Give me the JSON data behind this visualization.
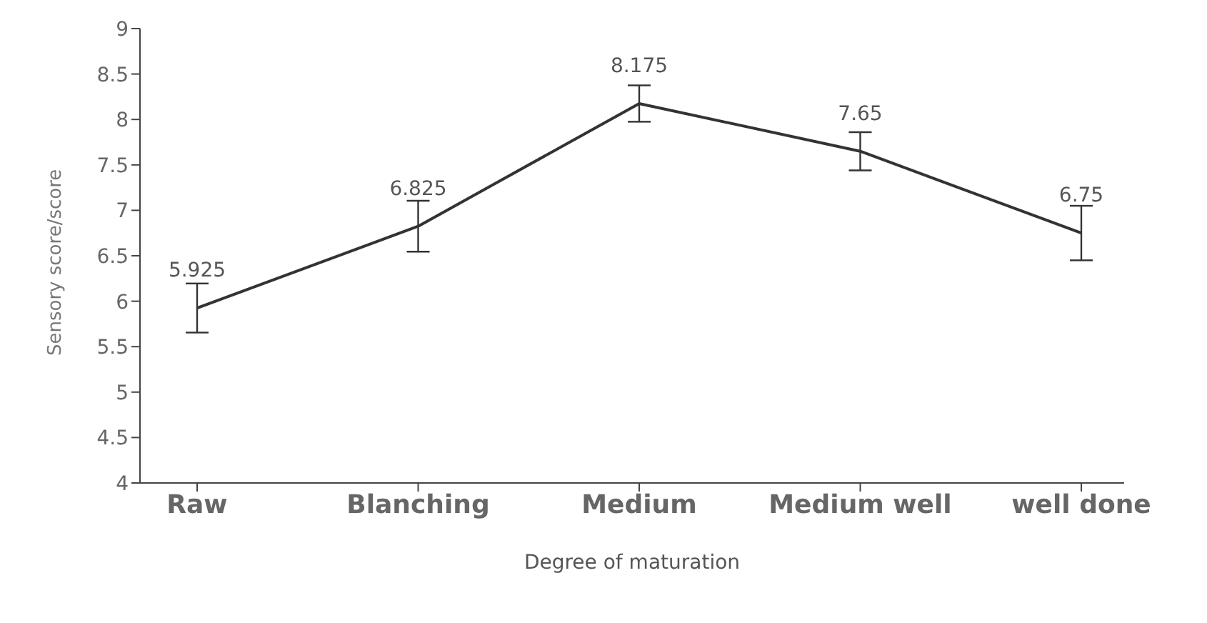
{
  "chart_data": {
    "type": "line",
    "xlabel": "Degree of maturation",
    "ylabel": "Sensory score/score",
    "categories": [
      "Raw",
      "Blanching",
      "Medium",
      "Medium well",
      "well done"
    ],
    "values": [
      5.925,
      6.825,
      8.175,
      7.65,
      6.75
    ],
    "errors": [
      0.27,
      0.28,
      0.2,
      0.21,
      0.3
    ],
    "color": "#333333",
    "ylim": [
      4,
      9
    ],
    "yticks": [
      4,
      4.5,
      5,
      5.5,
      6,
      6.5,
      7,
      7.5,
      8,
      8.5,
      9
    ],
    "data_labels": true,
    "grid": false,
    "marker": "none",
    "line_style": "solid"
  }
}
